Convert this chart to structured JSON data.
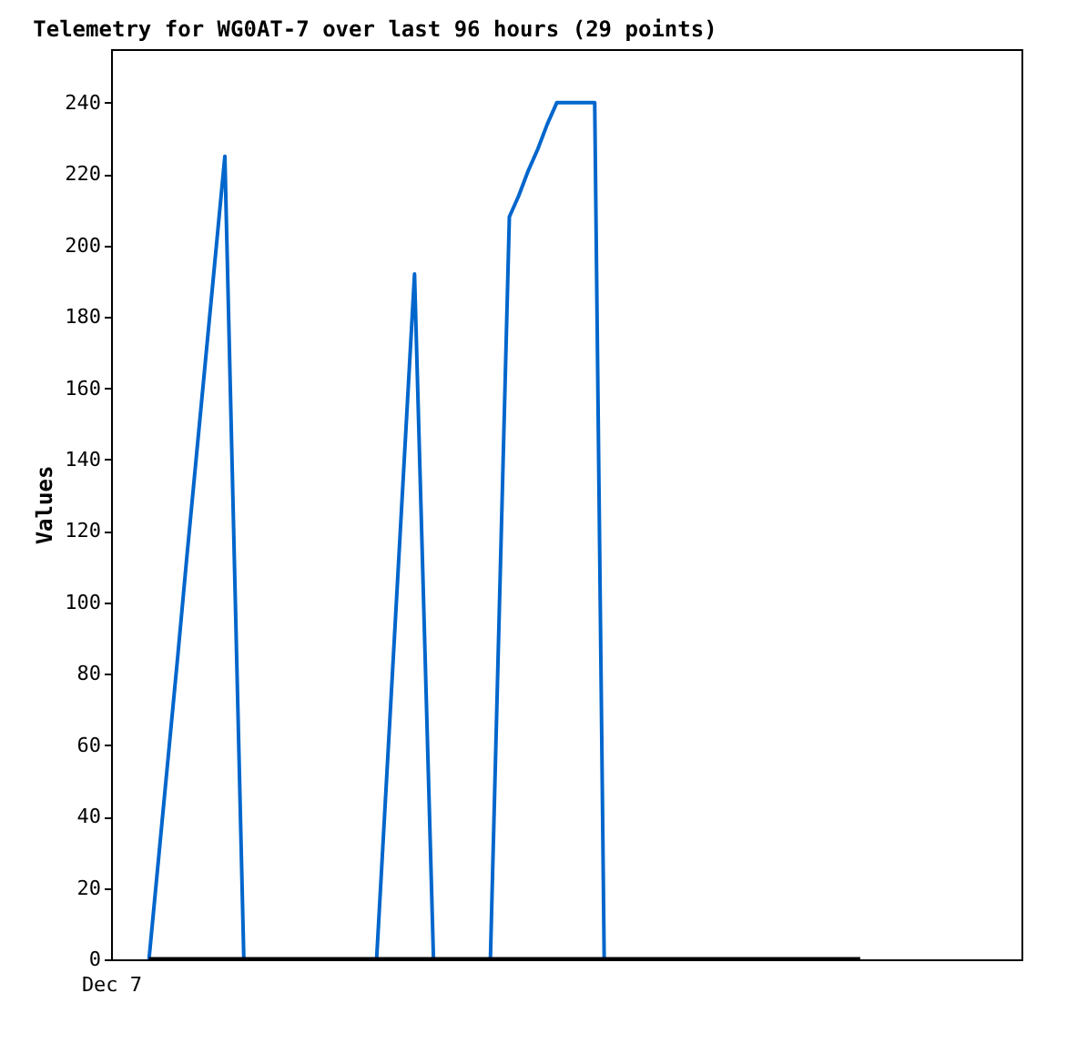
{
  "chart_data": {
    "type": "line",
    "title": "Telemetry for WG0AT-7 over last 96 hours (29 points)",
    "ylabel": "Values",
    "categories": [
      "Dec 7",
      null,
      null,
      null,
      null,
      null,
      null,
      null,
      null,
      null,
      null,
      null,
      null,
      null,
      null,
      null,
      null,
      null,
      null,
      null,
      null,
      null,
      null,
      null,
      null,
      null,
      null,
      null,
      null,
      null,
      null,
      null,
      null,
      null,
      null,
      null,
      null,
      null,
      null,
      null,
      null,
      null,
      null,
      null,
      null,
      null,
      null,
      null,
      null,
      null,
      null,
      null,
      null,
      null,
      null,
      null,
      null,
      null,
      null,
      null,
      null,
      null,
      null,
      null,
      null,
      null,
      null,
      null,
      null,
      null,
      null,
      null,
      null,
      null,
      null,
      null,
      null,
      null,
      null,
      null,
      null,
      null,
      null,
      null,
      null,
      null,
      null,
      null,
      null,
      null,
      null,
      null,
      null,
      null,
      null,
      null,
      null
    ],
    "ylim": [
      0,
      255
    ],
    "yticks": [
      0,
      20,
      40,
      60,
      80,
      100,
      120,
      140,
      160,
      180,
      200,
      220,
      240
    ],
    "grid": false,
    "series": [
      {
        "color": "#0066cc",
        "values": [
          null,
          null,
          null,
          null,
          0,
          28,
          56,
          84,
          113,
          141,
          169,
          197,
          225,
          112,
          0,
          null,
          null,
          null,
          null,
          null,
          null,
          null,
          null,
          null,
          null,
          null,
          null,
          null,
          0,
          48,
          96,
          144,
          192,
          96,
          0,
          null,
          null,
          null,
          null,
          null,
          0,
          104,
          208,
          214,
          221,
          227,
          234,
          240,
          240,
          240,
          240,
          240,
          0,
          null,
          null,
          null,
          null,
          null,
          null,
          null,
          null,
          null,
          null,
          null,
          null,
          null,
          null,
          null,
          null,
          null,
          null,
          null,
          null,
          null,
          null,
          null,
          null,
          null,
          null,
          null,
          null,
          null,
          null,
          null,
          null,
          null,
          null,
          null,
          null,
          null,
          null,
          null,
          null,
          null,
          null,
          null,
          null
        ]
      },
      {
        "color": "#000000",
        "values": [
          null,
          null,
          null,
          null,
          0,
          0,
          0,
          0,
          0,
          0,
          0,
          0,
          0,
          0,
          0,
          0,
          0,
          0,
          0,
          0,
          0,
          0,
          0,
          0,
          0,
          0,
          0,
          0,
          0,
          0,
          0,
          0,
          0,
          0,
          0,
          0,
          0,
          0,
          0,
          0,
          0,
          0,
          0,
          0,
          0,
          0,
          0,
          0,
          0,
          0,
          0,
          0,
          0,
          0,
          0,
          0,
          0,
          0,
          0,
          0,
          0,
          0,
          0,
          0,
          0,
          0,
          0,
          0,
          0,
          0,
          0,
          0,
          0,
          0,
          0,
          0,
          0,
          0,
          0,
          0,
          null,
          null,
          null,
          null,
          null,
          null,
          null,
          null,
          null,
          null,
          null,
          null,
          null,
          null,
          null,
          null,
          null
        ]
      }
    ]
  }
}
